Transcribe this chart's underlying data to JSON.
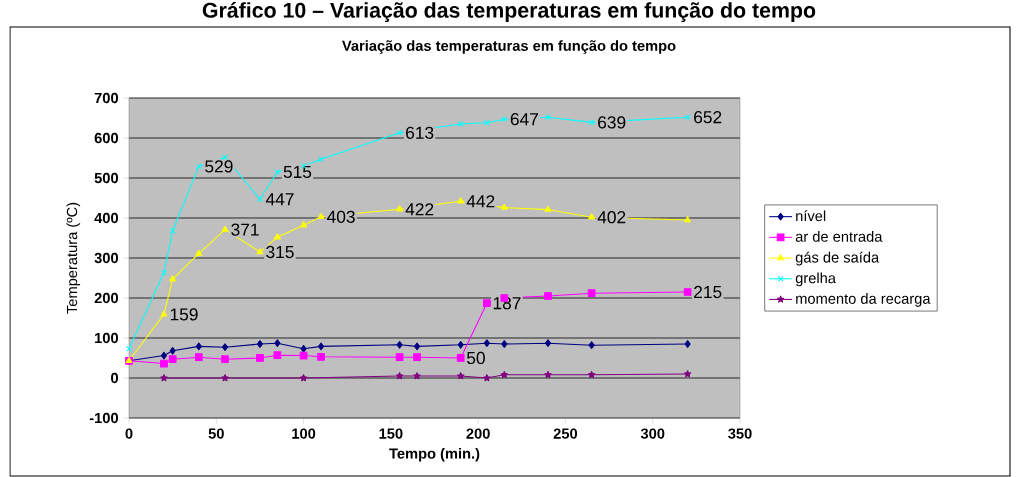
{
  "chart_data": {
    "type": "line",
    "title": "Gráfico 10 – Variação das temperaturas em função do tempo",
    "subtitle": "Variação das temperaturas em  função do tempo",
    "xlabel": "Tempo (min.)",
    "ylabel": "Temperatura (ºC)",
    "xlim": [
      0,
      350
    ],
    "xticks": [
      0,
      50,
      100,
      150,
      200,
      250,
      300,
      350
    ],
    "ylim": [
      -100,
      700
    ],
    "yticks": [
      -100,
      0,
      100,
      200,
      300,
      400,
      500,
      600,
      700
    ],
    "grid": "y",
    "legend": "right",
    "series": [
      {
        "name": "nível",
        "color": "#000080",
        "marker": "diamond",
        "x": [
          0,
          20,
          25,
          40,
          55,
          75,
          85,
          100,
          110,
          155,
          165,
          190,
          205,
          215,
          240,
          265,
          320
        ],
        "values": [
          43,
          56,
          68,
          79,
          77,
          85,
          87,
          73,
          79,
          83,
          79,
          83,
          87,
          85,
          87,
          82,
          85
        ]
      },
      {
        "name": "ar de entrada",
        "color": "#ff00ff",
        "marker": "square",
        "x": [
          0,
          20,
          25,
          40,
          55,
          75,
          85,
          100,
          110,
          155,
          165,
          190,
          205,
          215,
          240,
          265,
          320
        ],
        "values": [
          43,
          36,
          47,
          52,
          47,
          50,
          57,
          56,
          53,
          52,
          52,
          50,
          187,
          200,
          205,
          212,
          215
        ],
        "value_labels": [
          null,
          null,
          null,
          null,
          null,
          null,
          null,
          null,
          null,
          null,
          null,
          "50",
          "187",
          null,
          null,
          null,
          "215"
        ]
      },
      {
        "name": "gás de saída",
        "color": "#ffff00",
        "marker": "triangle",
        "x": [
          0,
          20,
          25,
          40,
          55,
          75,
          85,
          100,
          110,
          155,
          190,
          215,
          240,
          265,
          320
        ],
        "values": [
          43,
          159,
          247,
          311,
          371,
          315,
          352,
          382,
          403,
          422,
          442,
          426,
          421,
          402,
          395
        ],
        "value_labels": [
          null,
          "159",
          null,
          null,
          "371",
          "315",
          null,
          null,
          "403",
          "422",
          "442",
          null,
          null,
          "402",
          null
        ]
      },
      {
        "name": "grelha",
        "color": "#00ffff",
        "marker": "cross",
        "x": [
          0,
          20,
          25,
          40,
          55,
          75,
          85,
          100,
          110,
          155,
          190,
          205,
          215,
          240,
          265,
          320
        ],
        "values": [
          73,
          263,
          368,
          529,
          552,
          447,
          515,
          530,
          547,
          613,
          635,
          638,
          647,
          652,
          639,
          652
        ],
        "value_labels": [
          null,
          null,
          null,
          "529",
          null,
          "447",
          "515",
          null,
          null,
          "613",
          null,
          null,
          "647",
          null,
          "639",
          "652"
        ]
      },
      {
        "name": "momento da recarga",
        "color": "#800080",
        "marker": "star",
        "x": [
          20,
          55,
          100,
          155,
          165,
          190,
          205,
          215,
          240,
          265,
          320
        ],
        "values": [
          0,
          0,
          0,
          5,
          5,
          5,
          0,
          8,
          8,
          8,
          10
        ]
      }
    ]
  }
}
